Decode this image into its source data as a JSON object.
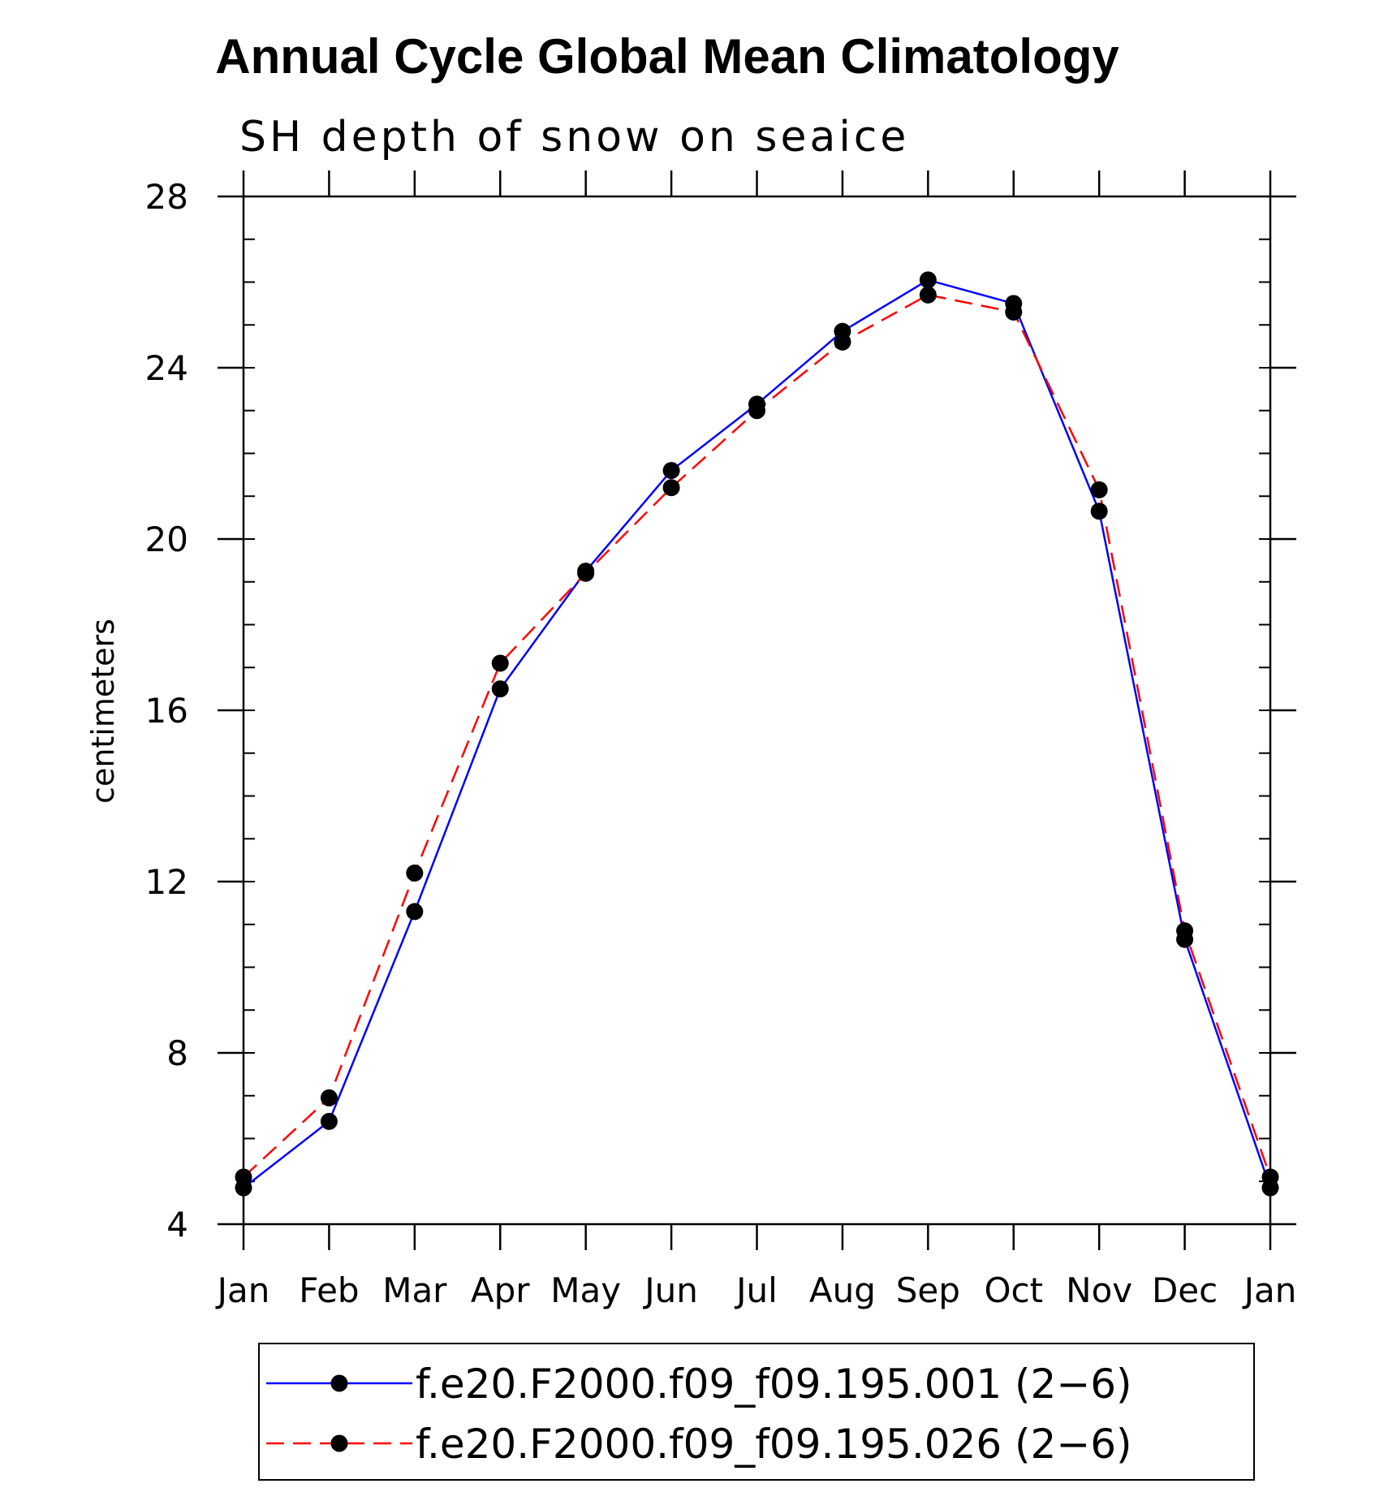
{
  "chart_data": {
    "type": "line",
    "title": "Annual Cycle Global Mean Climatology",
    "subtitle": "SH depth of snow on seaice",
    "xlabel": "",
    "ylabel": "centimeters",
    "categories": [
      "Jan",
      "Feb",
      "Mar",
      "Apr",
      "May",
      "Jun",
      "Jul",
      "Aug",
      "Sep",
      "Oct",
      "Nov",
      "Dec",
      "Jan"
    ],
    "ylim": [
      4,
      28
    ],
    "yticks": [
      "4",
      "8",
      "12",
      "16",
      "20",
      "24",
      "28"
    ],
    "ytick_values": [
      4,
      8,
      12,
      16,
      20,
      24,
      28
    ],
    "y_minor_step": 1,
    "series": [
      {
        "name": "f.e20.F2000.f09_f09.195.001 (2−6)",
        "color": "#0000ff",
        "dash": "solid",
        "marker": "filled-circle",
        "values": [
          4.85,
          6.4,
          11.3,
          16.5,
          19.25,
          21.6,
          23.15,
          24.85,
          26.05,
          25.5,
          20.65,
          10.65,
          4.85
        ]
      },
      {
        "name": "f.e20.F2000.f09_f09.195.026 (2−6)",
        "color": "#ff0000",
        "dash": "dashed",
        "marker": "filled-circle",
        "values": [
          5.1,
          6.95,
          12.2,
          17.1,
          19.2,
          21.2,
          23.0,
          24.6,
          25.7,
          25.3,
          21.15,
          10.85,
          5.1
        ]
      }
    ],
    "legend_position": "bottom-center"
  }
}
